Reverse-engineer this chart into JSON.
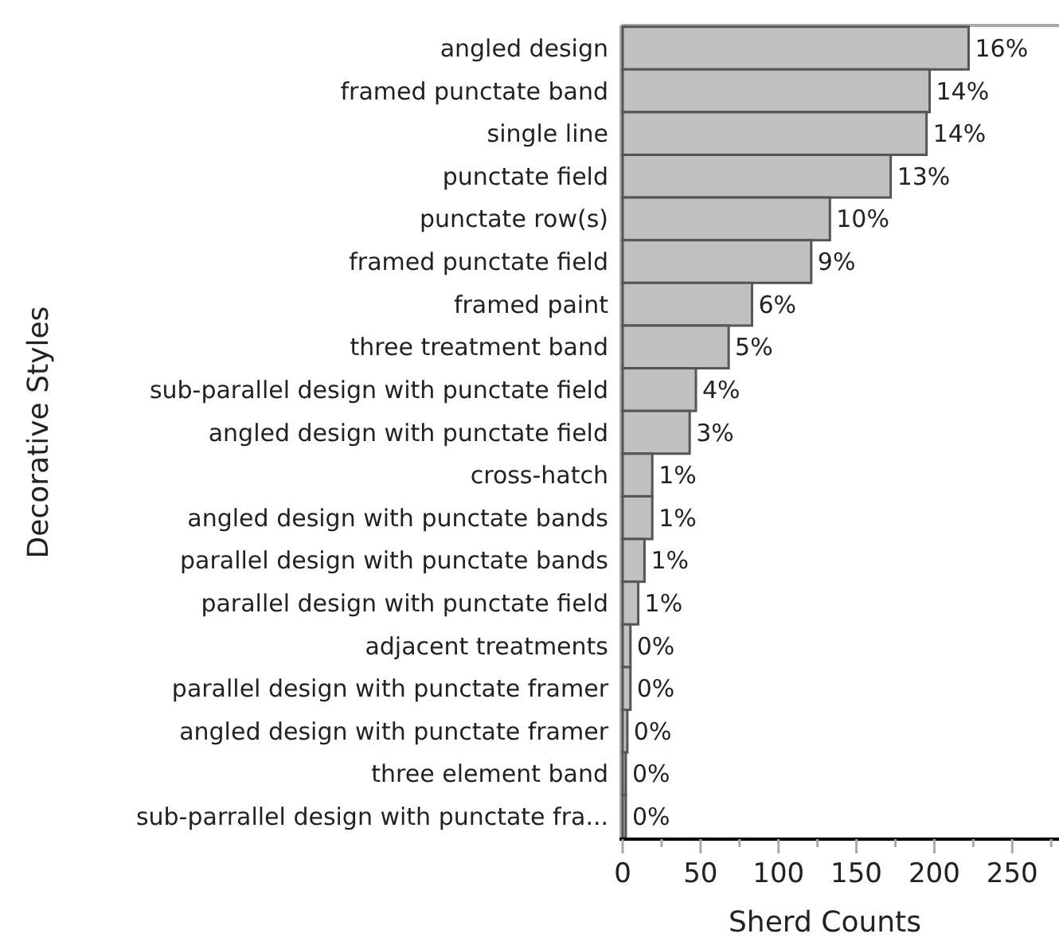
{
  "chart_data": {
    "type": "bar",
    "orientation": "horizontal",
    "xlabel": "Sherd Counts",
    "ylabel": "Decorative Styles",
    "categories": [
      "angled design",
      "framed punctate band",
      "single line",
      "punctate field",
      "punctate row(s)",
      "framed punctate field",
      "framed paint",
      "three treatment band",
      "sub-parallel design with punctate field",
      "angled design with punctate field",
      "cross-hatch",
      "angled design with punctate bands",
      "parallel design with punctate bands",
      "parallel design with punctate field",
      "adjacent treatments",
      "parallel design with punctate framer",
      "angled design with punctate framer",
      "three element band",
      "sub-parrallel design with punctate fra..."
    ],
    "values": [
      222,
      197,
      195,
      172,
      133,
      121,
      83,
      68,
      47,
      43,
      19,
      19,
      14,
      10,
      5,
      5,
      3,
      2,
      2
    ],
    "annotations": [
      {
        "text": "16%",
        "x": 222,
        "y": "angled design"
      },
      {
        "text": "14%",
        "x": 197,
        "y": "framed punctate band"
      },
      {
        "text": "14%",
        "x": 195,
        "y": "single line"
      },
      {
        "text": "13%",
        "x": 172,
        "y": "punctate field"
      },
      {
        "text": "10%",
        "x": 133,
        "y": "punctate row(s)"
      },
      {
        "text": "9%",
        "x": 121,
        "y": "framed punctate field"
      },
      {
        "text": "6%",
        "x": 83,
        "y": "framed paint"
      },
      {
        "text": "5%",
        "x": 68,
        "y": "three treatment band"
      },
      {
        "text": "4%",
        "x": 47,
        "y": "sub-parallel design with punctate field"
      },
      {
        "text": "3%",
        "x": 43,
        "y": "angled design with punctate field"
      },
      {
        "text": "1%",
        "x": 19,
        "y": "cross-hatch"
      },
      {
        "text": "1%",
        "x": 19,
        "y": "angled design with punctate bands"
      },
      {
        "text": "1%",
        "x": 14,
        "y": "parallel design with punctate bands"
      },
      {
        "text": "1%",
        "x": 10,
        "y": "parallel design with punctate field"
      },
      {
        "text": "0%",
        "x": 5,
        "y": "adjacent treatments"
      },
      {
        "text": "0%",
        "x": 5,
        "y": "parallel design with punctate framer"
      },
      {
        "text": "0%",
        "x": 3,
        "y": "angled design with punctate framer"
      },
      {
        "text": "0%",
        "x": 2,
        "y": "three element band"
      },
      {
        "text": "0%",
        "x": 2,
        "y": "sub-parrallel design with punctate fra..."
      }
    ],
    "color": "#c0c0c0",
    "xlim": [
      0,
      280
    ],
    "xticks": [
      0,
      {
        "value": 25,
        "label": null
      },
      50,
      {
        "value": 75,
        "label": null
      },
      100,
      {
        "value": 125,
        "label": null
      },
      150,
      {
        "value": 175,
        "label": null
      },
      200,
      {
        "value": 225,
        "label": null
      },
      250,
      {
        "value": 275,
        "label": null
      }
    ],
    "grid": false
  }
}
